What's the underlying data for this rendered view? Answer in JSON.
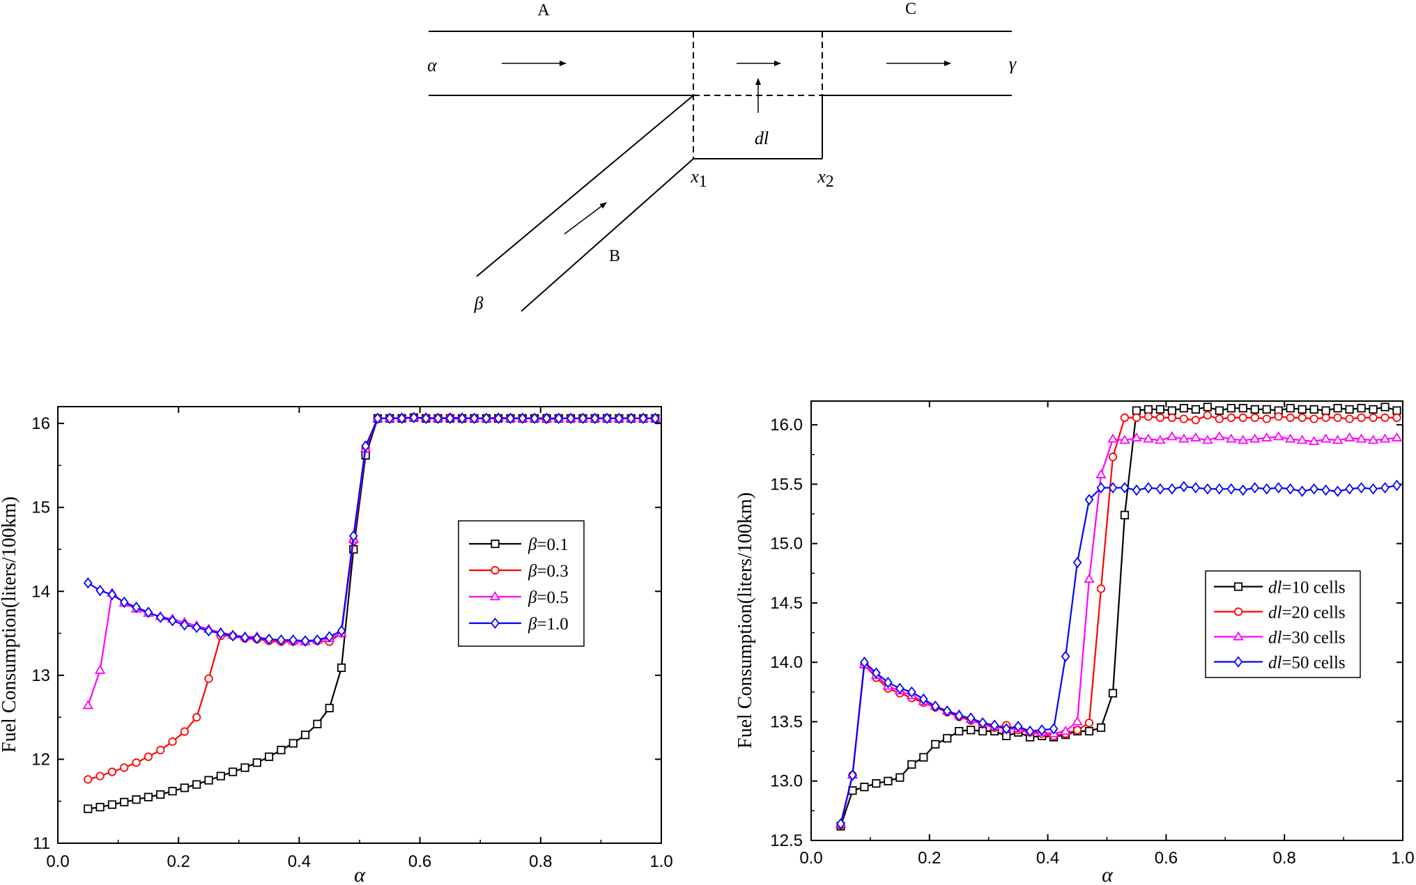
{
  "diagram": {
    "labels": {
      "A": "A",
      "B": "B",
      "C": "C",
      "alpha": "α",
      "beta": "β",
      "gamma": "γ",
      "dl": "dl",
      "x1_base": "x",
      "x1_sub": "1",
      "x2_base": "x",
      "x2_sub": "2"
    }
  },
  "chart_data": [
    {
      "type": "line",
      "xlabel": "α",
      "ylabel": "Fuel Consumption(liters/100km)",
      "xlim": [
        0.0,
        1.0
      ],
      "ylim": [
        11,
        16.2
      ],
      "xticks": [
        "0.0",
        "0.2",
        "0.4",
        "0.6",
        "0.8",
        "1.0"
      ],
      "yticks": [
        "11",
        "12",
        "13",
        "14",
        "15",
        "16"
      ],
      "xtick_values": [
        0,
        0.2,
        0.4,
        0.6,
        0.8,
        1.0
      ],
      "ytick_values": [
        11,
        12,
        13,
        14,
        15,
        16
      ],
      "legend_position": "right-middle",
      "series": [
        {
          "name": "β=0.1",
          "legend_prefix": "β",
          "legend_suffix": "=0.1",
          "color": "#000000",
          "marker": "square",
          "x": [
            0.05,
            0.07,
            0.09,
            0.11,
            0.13,
            0.15,
            0.17,
            0.19,
            0.21,
            0.23,
            0.25,
            0.27,
            0.29,
            0.31,
            0.33,
            0.35,
            0.37,
            0.39,
            0.41,
            0.43,
            0.45,
            0.47,
            0.49,
            0.51,
            0.53,
            0.55,
            0.57,
            0.59,
            0.61,
            0.63,
            0.65,
            0.67,
            0.69,
            0.71,
            0.73,
            0.75,
            0.77,
            0.79,
            0.81,
            0.83,
            0.85,
            0.87,
            0.89,
            0.91,
            0.93,
            0.95,
            0.97,
            0.99
          ],
          "y": [
            11.41,
            11.43,
            11.46,
            11.49,
            11.52,
            11.55,
            11.58,
            11.62,
            11.66,
            11.7,
            11.75,
            11.8,
            11.85,
            11.9,
            11.96,
            12.03,
            12.11,
            12.19,
            12.29,
            12.42,
            12.61,
            13.09,
            14.5,
            15.62,
            16.06,
            16.06,
            16.06,
            16.07,
            16.06,
            16.06,
            16.06,
            16.06,
            16.06,
            16.06,
            16.06,
            16.06,
            16.06,
            16.06,
            16.06,
            16.06,
            16.06,
            16.06,
            16.06,
            16.06,
            16.06,
            16.06,
            16.06,
            16.06
          ]
        },
        {
          "name": "β=0.3",
          "legend_prefix": "β",
          "legend_suffix": "=0.3",
          "color": "#ff0000",
          "marker": "circle",
          "x": [
            0.05,
            0.07,
            0.09,
            0.11,
            0.13,
            0.15,
            0.17,
            0.19,
            0.21,
            0.23,
            0.25,
            0.27,
            0.29,
            0.31,
            0.33,
            0.35,
            0.37,
            0.39,
            0.41,
            0.43,
            0.45,
            0.47,
            0.49,
            0.51,
            0.53,
            0.55,
            0.57,
            0.59,
            0.61,
            0.63,
            0.65,
            0.67,
            0.69,
            0.71,
            0.73,
            0.75,
            0.77,
            0.79,
            0.81,
            0.83,
            0.85,
            0.87,
            0.89,
            0.91,
            0.93,
            0.95,
            0.97,
            0.99
          ],
          "y": [
            11.76,
            11.8,
            11.85,
            11.9,
            11.96,
            12.03,
            12.11,
            12.21,
            12.33,
            12.5,
            12.96,
            13.47,
            13.47,
            13.44,
            13.43,
            13.41,
            13.4,
            13.4,
            13.4,
            13.41,
            13.4,
            13.5,
            14.6,
            15.7,
            16.06,
            16.06,
            16.06,
            16.07,
            16.06,
            16.06,
            16.07,
            16.06,
            16.06,
            16.06,
            16.06,
            16.06,
            16.06,
            16.06,
            16.05,
            16.06,
            16.06,
            16.06,
            16.06,
            16.06,
            16.06,
            16.06,
            16.06,
            16.06
          ]
        },
        {
          "name": "β=0.5",
          "legend_prefix": "β",
          "legend_suffix": "=0.5",
          "color": "#ff00ff",
          "marker": "triangle",
          "x": [
            0.05,
            0.07,
            0.09,
            0.11,
            0.13,
            0.15,
            0.17,
            0.19,
            0.21,
            0.23,
            0.25,
            0.27,
            0.29,
            0.31,
            0.33,
            0.35,
            0.37,
            0.39,
            0.41,
            0.43,
            0.45,
            0.47,
            0.49,
            0.51,
            0.53,
            0.55,
            0.57,
            0.59,
            0.61,
            0.63,
            0.65,
            0.67,
            0.69,
            0.71,
            0.73,
            0.75,
            0.77,
            0.79,
            0.81,
            0.83,
            0.85,
            0.87,
            0.89,
            0.91,
            0.93,
            0.95,
            0.97,
            0.99
          ],
          "y": [
            12.64,
            13.06,
            13.98,
            13.86,
            13.79,
            13.74,
            13.7,
            13.67,
            13.63,
            13.59,
            13.55,
            13.51,
            13.48,
            13.46,
            13.46,
            13.43,
            13.42,
            13.41,
            13.4,
            13.42,
            13.44,
            13.5,
            14.62,
            15.7,
            16.06,
            16.06,
            16.07,
            16.07,
            16.07,
            16.06,
            16.07,
            16.07,
            16.06,
            16.06,
            16.07,
            16.06,
            16.06,
            16.06,
            16.06,
            16.06,
            16.06,
            16.06,
            16.06,
            16.06,
            16.06,
            16.06,
            16.06,
            16.06
          ]
        },
        {
          "name": "β=1.0",
          "legend_prefix": "β",
          "legend_suffix": "=1.0",
          "color": "#0000ff",
          "marker": "diamond",
          "x": [
            0.05,
            0.07,
            0.09,
            0.11,
            0.13,
            0.15,
            0.17,
            0.19,
            0.21,
            0.23,
            0.25,
            0.27,
            0.29,
            0.31,
            0.33,
            0.35,
            0.37,
            0.39,
            0.41,
            0.43,
            0.45,
            0.47,
            0.49,
            0.51,
            0.53,
            0.55,
            0.57,
            0.59,
            0.61,
            0.63,
            0.65,
            0.67,
            0.69,
            0.71,
            0.73,
            0.75,
            0.77,
            0.79,
            0.81,
            0.83,
            0.85,
            0.87,
            0.89,
            0.91,
            0.93,
            0.95,
            0.97,
            0.99
          ],
          "y": [
            14.1,
            14.01,
            13.96,
            13.87,
            13.81,
            13.75,
            13.69,
            13.65,
            13.6,
            13.57,
            13.53,
            13.5,
            13.47,
            13.45,
            13.44,
            13.43,
            13.42,
            13.42,
            13.41,
            13.42,
            13.46,
            13.53,
            14.66,
            15.73,
            16.06,
            16.06,
            16.06,
            16.07,
            16.06,
            16.06,
            16.06,
            16.06,
            16.06,
            16.06,
            16.06,
            16.06,
            16.06,
            16.06,
            16.06,
            16.06,
            16.06,
            16.06,
            16.06,
            16.06,
            16.06,
            16.06,
            16.06,
            16.06
          ]
        }
      ]
    },
    {
      "type": "line",
      "xlabel": "α",
      "ylabel": "Fuel Consumption(liters/100km)",
      "xlim": [
        0.0,
        1.0
      ],
      "ylim": [
        12.5,
        16.2
      ],
      "xticks": [
        "0.0",
        "0.2",
        "0.4",
        "0.6",
        "0.8",
        "1.0"
      ],
      "yticks": [
        "12.5",
        "13.0",
        "13.5",
        "14.0",
        "14.5",
        "15.0",
        "15.5",
        "16.0"
      ],
      "xtick_values": [
        0,
        0.2,
        0.4,
        0.6,
        0.8,
        1.0
      ],
      "ytick_values": [
        12.5,
        13.0,
        13.5,
        14.0,
        14.5,
        15.0,
        15.5,
        16.0
      ],
      "legend_position": "right-middle",
      "series": [
        {
          "name": "dl=10 cells",
          "legend_prefix": "dl",
          "legend_suffix": "=10 cells",
          "color": "#000000",
          "marker": "square",
          "x": [
            0.05,
            0.07,
            0.09,
            0.11,
            0.13,
            0.15,
            0.17,
            0.19,
            0.21,
            0.23,
            0.25,
            0.27,
            0.29,
            0.31,
            0.33,
            0.35,
            0.37,
            0.39,
            0.41,
            0.43,
            0.45,
            0.47,
            0.49,
            0.51,
            0.53,
            0.55,
            0.57,
            0.59,
            0.61,
            0.63,
            0.65,
            0.67,
            0.69,
            0.71,
            0.73,
            0.75,
            0.77,
            0.79,
            0.81,
            0.83,
            0.85,
            0.87,
            0.89,
            0.91,
            0.93,
            0.95,
            0.97,
            0.99
          ],
          "y": [
            12.62,
            12.92,
            12.95,
            12.98,
            13.0,
            13.03,
            13.14,
            13.2,
            13.31,
            13.36,
            13.42,
            13.43,
            13.42,
            13.42,
            13.38,
            13.41,
            13.37,
            13.38,
            13.37,
            13.39,
            13.42,
            13.42,
            13.45,
            13.74,
            15.24,
            16.12,
            16.13,
            16.13,
            16.12,
            16.14,
            16.13,
            16.15,
            16.12,
            16.14,
            16.14,
            16.13,
            16.13,
            16.12,
            16.14,
            16.13,
            16.13,
            16.12,
            16.14,
            16.13,
            16.14,
            16.13,
            16.15,
            16.12
          ]
        },
        {
          "name": "dl=20 cells",
          "legend_prefix": "dl",
          "legend_suffix": "=20 cells",
          "color": "#ff0000",
          "marker": "circle",
          "x": [
            0.05,
            0.07,
            0.09,
            0.11,
            0.13,
            0.15,
            0.17,
            0.19,
            0.21,
            0.23,
            0.25,
            0.27,
            0.29,
            0.31,
            0.33,
            0.35,
            0.37,
            0.39,
            0.41,
            0.43,
            0.45,
            0.47,
            0.49,
            0.51,
            0.53,
            0.55,
            0.57,
            0.59,
            0.61,
            0.63,
            0.65,
            0.67,
            0.69,
            0.71,
            0.73,
            0.75,
            0.77,
            0.79,
            0.81,
            0.83,
            0.85,
            0.87,
            0.89,
            0.91,
            0.93,
            0.95,
            0.97,
            0.99
          ],
          "y": [
            12.63,
            13.05,
            13.98,
            13.87,
            13.78,
            13.74,
            13.7,
            13.66,
            13.62,
            13.58,
            13.54,
            13.51,
            13.48,
            13.45,
            13.47,
            13.43,
            13.41,
            13.4,
            13.38,
            13.4,
            13.43,
            13.49,
            14.62,
            15.73,
            16.06,
            16.06,
            16.07,
            16.06,
            16.06,
            16.05,
            16.04,
            16.08,
            16.05,
            16.06,
            16.06,
            16.06,
            16.05,
            16.07,
            16.06,
            16.06,
            16.05,
            16.06,
            16.06,
            16.05,
            16.06,
            16.06,
            16.06,
            16.06
          ]
        },
        {
          "name": "dl=30 cells",
          "legend_prefix": "dl",
          "legend_suffix": "=30 cells",
          "color": "#ff00ff",
          "marker": "triangle",
          "x": [
            0.05,
            0.07,
            0.09,
            0.11,
            0.13,
            0.15,
            0.17,
            0.19,
            0.21,
            0.23,
            0.25,
            0.27,
            0.29,
            0.31,
            0.33,
            0.35,
            0.37,
            0.39,
            0.41,
            0.43,
            0.45,
            0.47,
            0.49,
            0.51,
            0.53,
            0.55,
            0.57,
            0.59,
            0.61,
            0.63,
            0.65,
            0.67,
            0.69,
            0.71,
            0.73,
            0.75,
            0.77,
            0.79,
            0.81,
            0.83,
            0.85,
            0.87,
            0.89,
            0.91,
            0.93,
            0.95,
            0.97,
            0.99
          ],
          "y": [
            12.64,
            13.05,
            13.98,
            13.89,
            13.8,
            13.76,
            13.72,
            13.67,
            13.63,
            13.59,
            13.56,
            13.52,
            13.49,
            13.46,
            13.44,
            13.44,
            13.42,
            13.41,
            13.4,
            13.42,
            13.5,
            14.7,
            15.58,
            15.88,
            15.87,
            15.89,
            15.88,
            15.87,
            15.9,
            15.88,
            15.89,
            15.87,
            15.9,
            15.88,
            15.87,
            15.88,
            15.89,
            15.9,
            15.88,
            15.87,
            15.86,
            15.88,
            15.87,
            15.89,
            15.88,
            15.87,
            15.88,
            15.89
          ]
        },
        {
          "name": "dl=50 cells",
          "legend_prefix": "dl",
          "legend_suffix": "=50 cells",
          "color": "#0000ff",
          "marker": "diamond",
          "x": [
            0.05,
            0.07,
            0.09,
            0.11,
            0.13,
            0.15,
            0.17,
            0.19,
            0.21,
            0.23,
            0.25,
            0.27,
            0.29,
            0.31,
            0.33,
            0.35,
            0.37,
            0.39,
            0.41,
            0.43,
            0.45,
            0.47,
            0.49,
            0.51,
            0.53,
            0.55,
            0.57,
            0.59,
            0.61,
            0.63,
            0.65,
            0.67,
            0.69,
            0.71,
            0.73,
            0.75,
            0.77,
            0.79,
            0.81,
            0.83,
            0.85,
            0.87,
            0.89,
            0.91,
            0.93,
            0.95,
            0.97,
            0.99
          ],
          "y": [
            12.64,
            13.05,
            14.0,
            13.91,
            13.83,
            13.78,
            13.75,
            13.69,
            13.63,
            13.59,
            13.55,
            13.53,
            13.49,
            13.47,
            13.44,
            13.46,
            13.42,
            13.43,
            13.44,
            14.05,
            14.84,
            15.37,
            15.47,
            15.47,
            15.47,
            15.45,
            15.47,
            15.46,
            15.46,
            15.48,
            15.47,
            15.46,
            15.46,
            15.46,
            15.45,
            15.47,
            15.46,
            15.47,
            15.46,
            15.44,
            15.46,
            15.45,
            15.44,
            15.46,
            15.47,
            15.46,
            15.47,
            15.49
          ]
        }
      ]
    }
  ]
}
